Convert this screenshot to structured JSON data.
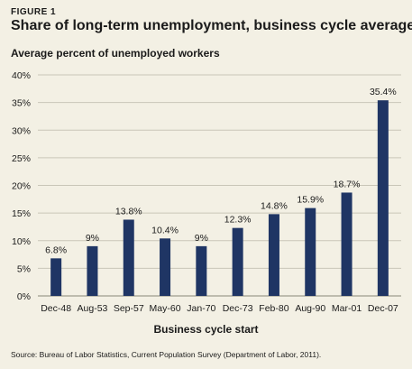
{
  "figure_label": "FIGURE 1",
  "chart_data": {
    "type": "bar",
    "title": "Share of long-term unemployment, business cycle averages",
    "ylabel": "Average percent of unemployed workers",
    "xlabel": "Business cycle start",
    "categories": [
      "Dec-48",
      "Aug-53",
      "Sep-57",
      "May-60",
      "Jan-70",
      "Dec-73",
      "Feb-80",
      "Aug-90",
      "Mar-01",
      "Dec-07"
    ],
    "values": [
      6.8,
      9,
      13.8,
      10.4,
      9,
      12.3,
      14.8,
      15.9,
      18.7,
      35.4
    ],
    "data_labels": [
      "6.8%",
      "9%",
      "13.8%",
      "10.4%",
      "9%",
      "12.3%",
      "14.8%",
      "15.9%",
      "18.7%",
      "35.4%"
    ],
    "ylim": [
      0,
      40
    ],
    "yticks": [
      0,
      5,
      10,
      15,
      20,
      25,
      30,
      35,
      40
    ],
    "ytick_labels": [
      "0%",
      "5%",
      "10%",
      "15%",
      "20%",
      "25%",
      "30%",
      "35%",
      "40%"
    ],
    "grid": true,
    "bar_color": "#1f3564",
    "grid_color": "#c9c6b8"
  },
  "source": "Source: Bureau of Labor Statistics, Current Population Survey (Department of Labor, 2011)."
}
